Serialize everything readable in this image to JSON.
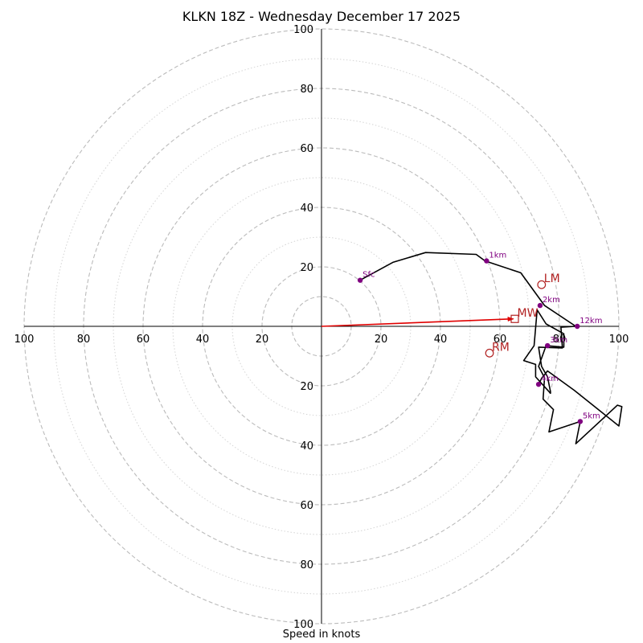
{
  "chart_data": {
    "type": "hodograph",
    "title": "KLKN 18Z - Wednesday December 17 2025",
    "xlabel": "Speed in knots",
    "units": "knots",
    "range": [
      -100,
      100
    ],
    "ring_dashed": [
      10,
      20,
      40,
      60,
      80,
      100
    ],
    "ring_dotted": [
      30,
      50,
      70,
      90
    ],
    "x_tick_labels": [
      {
        "value": -100,
        "label": "100"
      },
      {
        "value": -80,
        "label": "80"
      },
      {
        "value": -60,
        "label": "60"
      },
      {
        "value": -40,
        "label": "40"
      },
      {
        "value": -20,
        "label": "20"
      },
      {
        "value": 20,
        "label": "20"
      },
      {
        "value": 40,
        "label": "40"
      },
      {
        "value": 60,
        "label": "60"
      },
      {
        "value": 80,
        "label": "80"
      },
      {
        "value": 100,
        "label": "100"
      }
    ],
    "y_tick_labels": [
      {
        "value": 100,
        "label": "100"
      },
      {
        "value": 80,
        "label": "80"
      },
      {
        "value": 60,
        "label": "60"
      },
      {
        "value": 40,
        "label": "40"
      },
      {
        "value": 20,
        "label": "20"
      },
      {
        "value": -20,
        "label": "20"
      },
      {
        "value": -40,
        "label": "40"
      },
      {
        "value": -60,
        "label": "60"
      },
      {
        "value": -80,
        "label": "80"
      },
      {
        "value": -100,
        "label": "100"
      }
    ],
    "hodograph_trace": [
      [
        13,
        15.5
      ],
      [
        24,
        21.5
      ],
      [
        35,
        24.8
      ],
      [
        52,
        24.2
      ],
      [
        55,
        22
      ],
      [
        67,
        18
      ],
      [
        75,
        7
      ],
      [
        85.5,
        0
      ],
      [
        80.5,
        -0.3
      ],
      [
        81,
        -7.3
      ],
      [
        73,
        -7
      ],
      [
        74,
        -13.5
      ],
      [
        76,
        -17
      ],
      [
        77,
        -22
      ],
      [
        77,
        -22.5
      ],
      [
        72,
        -17
      ],
      [
        72,
        -12.8
      ],
      [
        68,
        -11.5
      ],
      [
        71.5,
        -6.5
      ],
      [
        72.5,
        5.5
      ],
      [
        75.5,
        0.8
      ],
      [
        81.5,
        -2.5
      ],
      [
        81.5,
        -7
      ],
      [
        75.5,
        -6.5
      ],
      [
        73,
        -13.5
      ],
      [
        75,
        -17.3
      ],
      [
        74.5,
        -24.5
      ],
      [
        78,
        -28
      ],
      [
        76.5,
        -35.5
      ],
      [
        87,
        -32
      ],
      [
        86,
        -37
      ],
      [
        85.5,
        -39.5
      ],
      [
        99.5,
        -26.5
      ],
      [
        101,
        -27
      ],
      [
        100,
        -33.5
      ],
      [
        85,
        -21.5
      ],
      [
        76,
        -15
      ],
      [
        74,
        -17.5
      ],
      [
        73,
        -19.5
      ]
    ],
    "height_markers": [
      {
        "label": "Sfc",
        "u": 13,
        "v": 15.5
      },
      {
        "label": "1km",
        "u": 55.5,
        "v": 22
      },
      {
        "label": "2km",
        "u": 73.5,
        "v": 7
      },
      {
        "label": "12km",
        "u": 86,
        "v": 0
      },
      {
        "label": "3km",
        "u": 76,
        "v": -6.5
      },
      {
        "label": "4km",
        "u": 73,
        "v": -19.5
      },
      {
        "label": "5km",
        "u": 87,
        "v": -32
      }
    ],
    "storm_motion": [
      {
        "label": "LM",
        "marker": "circle",
        "u": 74,
        "v": 14
      },
      {
        "label": "MW",
        "marker": "square",
        "u": 65,
        "v": 2.5
      },
      {
        "label": "RM",
        "marker": "circle",
        "u": 56.5,
        "v": -9
      }
    ],
    "shear_vector": {
      "from": [
        0,
        0
      ],
      "to": [
        64.5,
        2.5
      ]
    },
    "colors": {
      "trace": "#000000",
      "markers": "#800080",
      "storm_motion": "#b22222",
      "shear_vector": "#e00000",
      "rings": "#bbbbbb",
      "axes": "#000000"
    }
  }
}
